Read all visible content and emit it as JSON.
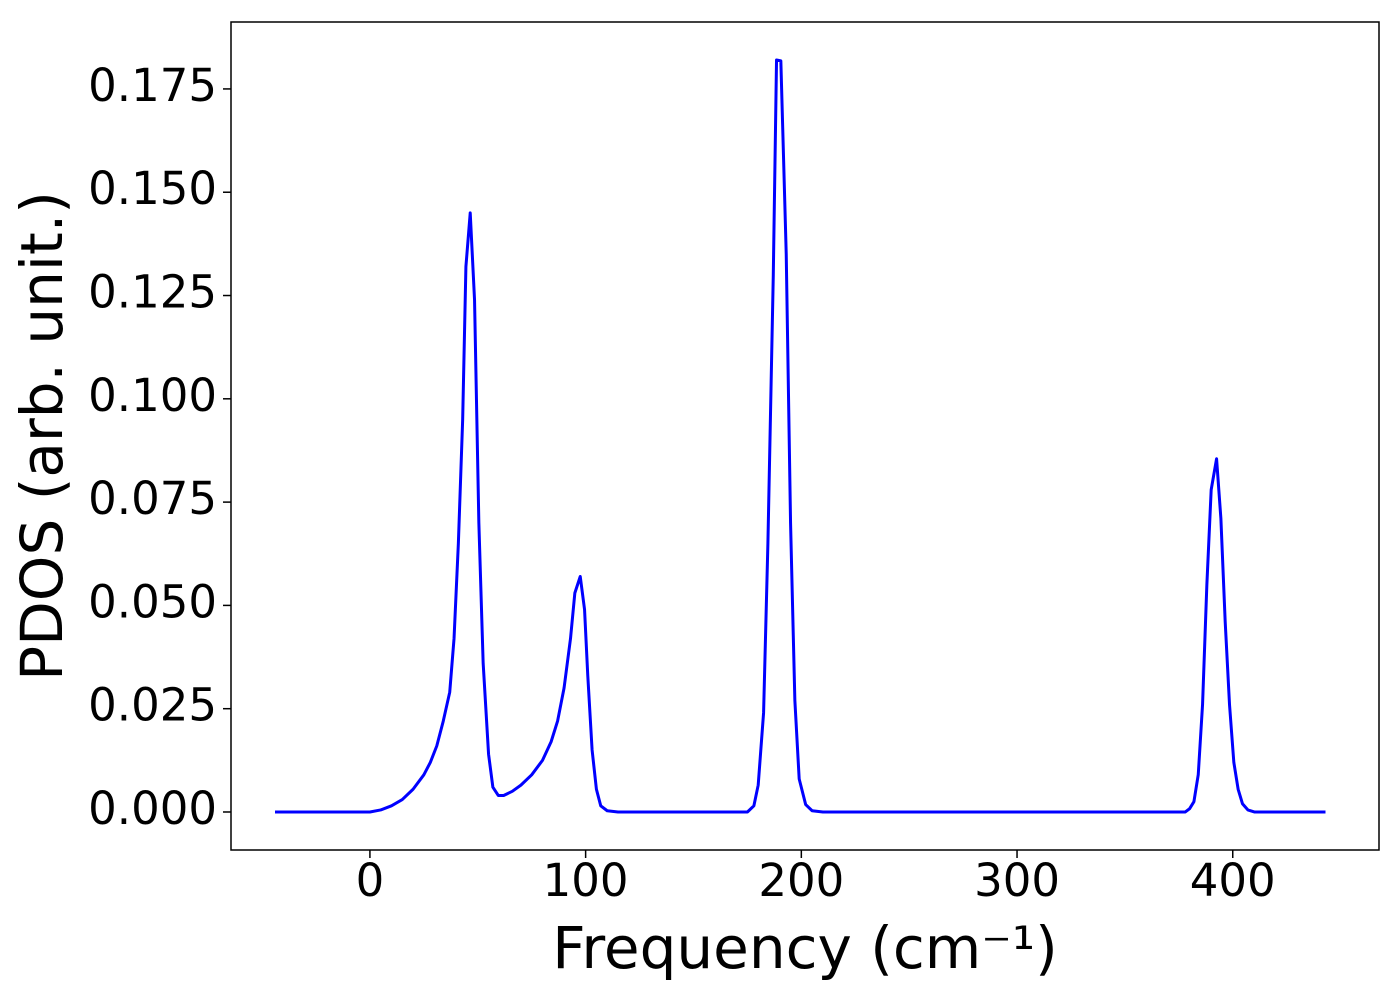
{
  "chart_data": {
    "type": "line",
    "xlabel": "Frequency (cm⁻¹)",
    "ylabel": "PDOS (arb. unit.)",
    "xlim": [
      -64.4,
      467.8
    ],
    "ylim": [
      -0.0092,
      0.1912
    ],
    "xticks": [
      0,
      100,
      200,
      300,
      400
    ],
    "yticks": [
      {
        "value": 0,
        "label": "0.000"
      },
      {
        "value": 0.025,
        "label": "0.025"
      },
      {
        "value": 0.05,
        "label": "0.050"
      },
      {
        "value": 0.075,
        "label": "0.075"
      },
      {
        "value": 0.1,
        "label": "0.100"
      },
      {
        "value": 0.125,
        "label": "0.125"
      },
      {
        "value": 0.15,
        "label": "0.150"
      },
      {
        "value": 0.175,
        "label": "0.175"
      }
    ],
    "series": [
      {
        "color": "#0000ff",
        "x": [
          -44,
          0,
          5,
          10,
          15,
          20,
          25,
          28,
          31,
          34,
          37,
          39,
          41,
          43,
          44.5,
          46.5,
          48.5,
          50.5,
          52.5,
          55,
          57,
          59.5,
          62,
          66,
          70,
          75,
          80,
          84,
          87,
          90,
          93,
          95,
          97.5,
          99.5,
          101,
          103,
          105,
          107,
          110,
          115,
          175,
          178,
          180,
          182.5,
          184.5,
          187,
          188.5,
          190.5,
          193,
          195,
          197,
          199,
          202,
          205,
          210,
          378,
          380,
          382,
          384,
          386,
          388,
          390,
          392.5,
          394.5,
          396.5,
          398.5,
          400.5,
          402.5,
          404.5,
          407,
          410,
          443
        ],
        "values": [
          0,
          0,
          0.0005,
          0.0015,
          0.003,
          0.0055,
          0.009,
          0.012,
          0.016,
          0.022,
          0.029,
          0.042,
          0.065,
          0.095,
          0.132,
          0.145,
          0.124,
          0.07,
          0.036,
          0.014,
          0.006,
          0.004,
          0.004,
          0.005,
          0.0065,
          0.009,
          0.0125,
          0.017,
          0.022,
          0.03,
          0.042,
          0.053,
          0.057,
          0.049,
          0.033,
          0.015,
          0.0055,
          0.0015,
          0.0003,
          0,
          0,
          0.0015,
          0.0065,
          0.024,
          0.065,
          0.13,
          0.182,
          0.1818,
          0.135,
          0.07,
          0.027,
          0.008,
          0.0018,
          0.0003,
          0,
          0,
          0.0008,
          0.0025,
          0.009,
          0.026,
          0.055,
          0.078,
          0.0855,
          0.071,
          0.046,
          0.026,
          0.012,
          0.0055,
          0.002,
          0.0005,
          0,
          0
        ]
      }
    ]
  }
}
